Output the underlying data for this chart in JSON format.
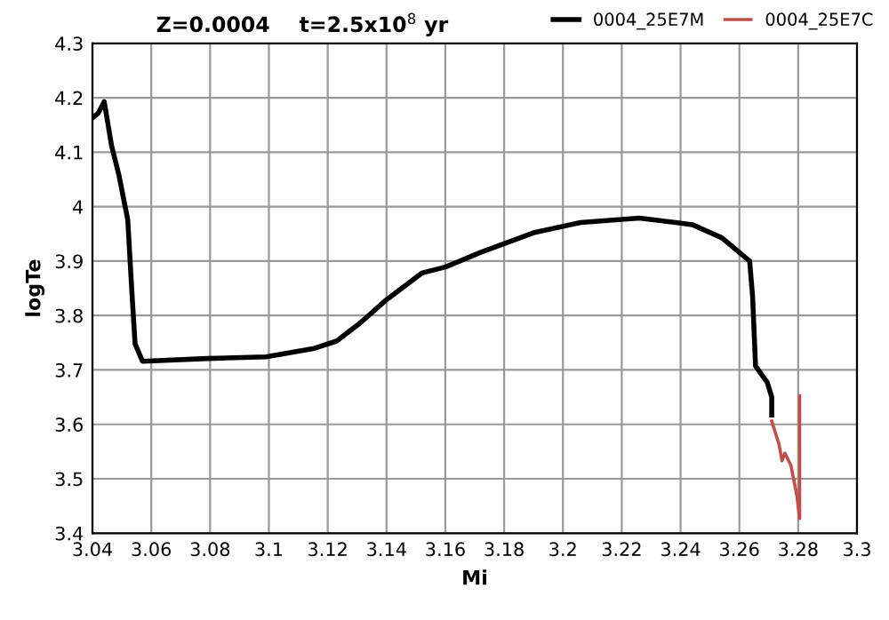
{
  "chart_data": {
    "type": "line",
    "title": "Z=0.0004    t=2.5x10$^{8}$ yr",
    "xlabel": "Mi",
    "ylabel": "logTe",
    "xlim": [
      3.04,
      3.3
    ],
    "xticks": [
      {
        "value": 3.04,
        "label": "3.04"
      },
      {
        "value": 3.06,
        "label": "3.06"
      },
      {
        "value": 3.08,
        "label": "3.08"
      },
      {
        "value": 3.1,
        "label": "3.1"
      },
      {
        "value": 3.12,
        "label": "3.12"
      },
      {
        "value": 3.14,
        "label": "3.14"
      },
      {
        "value": 3.16,
        "label": "3.16"
      },
      {
        "value": 3.18,
        "label": "3.18"
      },
      {
        "value": 3.2,
        "label": "3.2"
      },
      {
        "value": 3.22,
        "label": "3.22"
      },
      {
        "value": 3.24,
        "label": "3.24"
      },
      {
        "value": 3.26,
        "label": "3.26"
      },
      {
        "value": 3.28,
        "label": "3.28"
      },
      {
        "value": 3.3,
        "label": "3.3"
      }
    ],
    "ylim": [
      3.4,
      4.3
    ],
    "yticks": [
      {
        "value": 3.4,
        "label": "3.4"
      },
      {
        "value": 3.5,
        "label": "3.5"
      },
      {
        "value": 3.6,
        "label": "3.6"
      },
      {
        "value": 3.7,
        "label": "3.7"
      },
      {
        "value": 3.8,
        "label": "3.8"
      },
      {
        "value": 3.9,
        "label": "3.9"
      },
      {
        "value": 4.0,
        "label": "4"
      },
      {
        "value": 4.1,
        "label": "4.1"
      },
      {
        "value": 4.2,
        "label": "4.2"
      },
      {
        "value": 4.3,
        "label": "4.3"
      }
    ],
    "grid": true,
    "legend": "top right",
    "marker": "none",
    "line_style": "solid",
    "series": [
      {
        "name": "0004_25E7M",
        "color": "#000000",
        "x": [
          3.04,
          3.042,
          3.044,
          3.0465,
          3.049,
          3.052,
          3.0535,
          3.0545,
          3.057,
          3.079,
          3.099,
          3.115,
          3.123,
          3.131,
          3.14,
          3.152,
          3.16,
          3.172,
          3.19,
          3.206,
          3.226,
          3.244,
          3.254,
          3.2635,
          3.2645,
          3.2655,
          3.2695,
          3.271,
          3.271
        ],
        "values": [
          4.163,
          4.172,
          4.193,
          4.112,
          4.058,
          3.976,
          3.835,
          3.748,
          3.716,
          3.721,
          3.724,
          3.739,
          3.753,
          3.786,
          3.829,
          3.878,
          3.889,
          3.916,
          3.952,
          3.971,
          3.979,
          3.967,
          3.943,
          3.9,
          3.835,
          3.707,
          3.677,
          3.65,
          3.617
        ]
      },
      {
        "name": "0004_25E7C",
        "color": "#c0504d",
        "x": [
          3.271,
          3.2735,
          3.2745,
          3.2755,
          3.2775,
          3.2795,
          3.2805,
          3.2805
        ],
        "values": [
          3.606,
          3.563,
          3.533,
          3.547,
          3.525,
          3.471,
          3.427,
          3.652
        ]
      }
    ]
  }
}
